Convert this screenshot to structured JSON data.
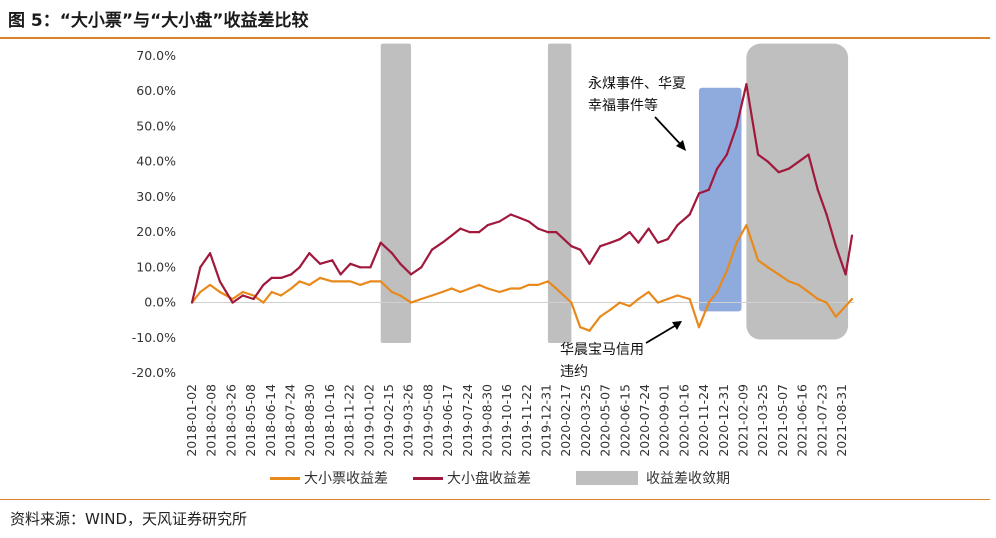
{
  "header": {
    "title": "图 5：“大小票”与“大小盘”收益差比较"
  },
  "footer": {
    "source": "资料来源：WIND，天风证券研究所"
  },
  "chart_data": {
    "type": "line",
    "title": "图 5：“大小票”与“大小盘”收益差比较",
    "xlabel": "",
    "ylabel": "",
    "ylim": [
      -0.2,
      0.7
    ],
    "y_ticks": [
      "70.0%",
      "60.0%",
      "50.0%",
      "40.0%",
      "30.0%",
      "20.0%",
      "10.0%",
      "0.0%",
      "-10.0%",
      "-20.0%"
    ],
    "y_tick_values": [
      0.7,
      0.6,
      0.5,
      0.4,
      0.3,
      0.2,
      0.1,
      0.0,
      -0.1,
      -0.2
    ],
    "x_ticks": [
      "2018-01-02",
      "2018-02-08",
      "2018-03-26",
      "2018-05-08",
      "2018-06-14",
      "2018-07-24",
      "2018-08-30",
      "2018-10-16",
      "2018-11-22",
      "2019-01-02",
      "2019-02-15",
      "2019-03-26",
      "2019-05-08",
      "2019-06-17",
      "2019-07-24",
      "2019-08-30",
      "2019-10-16",
      "2019-11-22",
      "2019-12-31",
      "2020-02-17",
      "2020-03-25",
      "2020-05-07",
      "2020-06-15",
      "2020-07-24",
      "2020-09-01",
      "2020-10-16",
      "2020-11-24",
      "2020-12-31",
      "2021-02-09",
      "2021-03-25",
      "2021-05-07",
      "2021-06-16",
      "2021-07-23",
      "2021-08-31"
    ],
    "legend_position": "bottom",
    "grid": false,
    "series": [
      {
        "name": "大小票收益差",
        "color": "#e8891c",
        "x": [
          "2018-01-02",
          "2018-01-19",
          "2018-02-08",
          "2018-02-28",
          "2018-03-26",
          "2018-04-16",
          "2018-05-08",
          "2018-05-28",
          "2018-06-14",
          "2018-07-03",
          "2018-07-24",
          "2018-08-10",
          "2018-08-30",
          "2018-09-21",
          "2018-10-16",
          "2018-11-02",
          "2018-11-22",
          "2018-12-12",
          "2019-01-02",
          "2019-01-23",
          "2019-02-15",
          "2019-03-04",
          "2019-03-26",
          "2019-04-16",
          "2019-05-08",
          "2019-05-29",
          "2019-06-17",
          "2019-07-05",
          "2019-07-24",
          "2019-08-12",
          "2019-08-30",
          "2019-09-23",
          "2019-10-16",
          "2019-11-04",
          "2019-11-22",
          "2019-12-11",
          "2019-12-31",
          "2020-01-17",
          "2020-02-17",
          "2020-03-06",
          "2020-03-25",
          "2020-04-16",
          "2020-05-07",
          "2020-05-26",
          "2020-06-15",
          "2020-07-03",
          "2020-07-24",
          "2020-08-12",
          "2020-09-01",
          "2020-09-21",
          "2020-10-16",
          "2020-11-04",
          "2020-11-24",
          "2020-12-11",
          "2020-12-31",
          "2021-01-20",
          "2021-02-09",
          "2021-03-05",
          "2021-03-25",
          "2021-04-16",
          "2021-05-07",
          "2021-05-27",
          "2021-06-16",
          "2021-07-05",
          "2021-07-23",
          "2021-08-11",
          "2021-08-31",
          "2021-09-13"
        ],
        "values": [
          0.0,
          0.03,
          0.05,
          0.03,
          0.01,
          0.03,
          0.02,
          0.0,
          0.03,
          0.02,
          0.04,
          0.06,
          0.05,
          0.07,
          0.06,
          0.06,
          0.06,
          0.05,
          0.06,
          0.06,
          0.03,
          0.02,
          0.0,
          0.01,
          0.02,
          0.03,
          0.04,
          0.03,
          0.04,
          0.05,
          0.04,
          0.03,
          0.04,
          0.04,
          0.05,
          0.05,
          0.06,
          0.04,
          0.0,
          -0.07,
          -0.08,
          -0.04,
          -0.02,
          0.0,
          -0.01,
          0.01,
          0.03,
          0.0,
          0.01,
          0.02,
          0.01,
          -0.07,
          0.0,
          0.03,
          0.09,
          0.17,
          0.22,
          0.12,
          0.1,
          0.08,
          0.06,
          0.05,
          0.03,
          0.01,
          0.0,
          -0.04,
          -0.01,
          0.01
        ]
      },
      {
        "name": "大小盘收益差",
        "color": "#a0183c",
        "x": [
          "2018-01-02",
          "2018-01-19",
          "2018-02-08",
          "2018-02-28",
          "2018-03-26",
          "2018-04-16",
          "2018-05-08",
          "2018-05-28",
          "2018-06-14",
          "2018-07-03",
          "2018-07-24",
          "2018-08-10",
          "2018-08-30",
          "2018-09-21",
          "2018-10-16",
          "2018-11-02",
          "2018-11-22",
          "2018-12-12",
          "2019-01-02",
          "2019-01-23",
          "2019-02-15",
          "2019-03-04",
          "2019-03-26",
          "2019-04-16",
          "2019-05-08",
          "2019-05-29",
          "2019-06-17",
          "2019-07-05",
          "2019-07-24",
          "2019-08-12",
          "2019-08-30",
          "2019-09-23",
          "2019-10-16",
          "2019-11-04",
          "2019-11-22",
          "2019-12-11",
          "2019-12-31",
          "2020-01-17",
          "2020-02-17",
          "2020-03-06",
          "2020-03-25",
          "2020-04-16",
          "2020-05-07",
          "2020-05-26",
          "2020-06-15",
          "2020-07-03",
          "2020-07-24",
          "2020-08-12",
          "2020-09-01",
          "2020-09-21",
          "2020-10-16",
          "2020-11-04",
          "2020-11-24",
          "2020-12-11",
          "2020-12-31",
          "2021-01-20",
          "2021-02-09",
          "2021-03-05",
          "2021-03-25",
          "2021-04-16",
          "2021-05-07",
          "2021-05-27",
          "2021-06-16",
          "2021-07-05",
          "2021-07-23",
          "2021-08-11",
          "2021-08-31",
          "2021-09-13"
        ],
        "values": [
          0.0,
          0.1,
          0.14,
          0.06,
          0.0,
          0.02,
          0.01,
          0.05,
          0.07,
          0.07,
          0.08,
          0.1,
          0.14,
          0.11,
          0.12,
          0.08,
          0.11,
          0.1,
          0.1,
          0.17,
          0.14,
          0.11,
          0.08,
          0.1,
          0.15,
          0.17,
          0.19,
          0.21,
          0.2,
          0.2,
          0.22,
          0.23,
          0.25,
          0.24,
          0.23,
          0.21,
          0.2,
          0.2,
          0.16,
          0.15,
          0.11,
          0.16,
          0.17,
          0.18,
          0.2,
          0.17,
          0.21,
          0.17,
          0.18,
          0.22,
          0.25,
          0.31,
          0.32,
          0.38,
          0.42,
          0.5,
          0.62,
          0.42,
          0.4,
          0.37,
          0.38,
          0.4,
          0.42,
          0.32,
          0.25,
          0.16,
          0.08,
          0.19
        ]
      }
    ],
    "shaded_regions": {
      "name": "收益差收敛期",
      "color": "#bfbfbf",
      "regions": [
        {
          "start": "2019-01-23",
          "end": "2019-03-26",
          "y": [
            -0.115,
            0.735
          ]
        },
        {
          "start": "2019-12-31",
          "end": "2020-02-17",
          "y": [
            -0.115,
            0.735
          ]
        },
        {
          "start": "2021-02-09",
          "end": "2021-09-05",
          "y": [
            -0.105,
            0.735
          ]
        }
      ],
      "highlight": {
        "start": "2020-11-04",
        "end": "2021-01-30",
        "y": [
          -0.025,
          0.61
        ],
        "color": "#8faadc"
      }
    },
    "annotations": [
      {
        "id": "annotation-top",
        "line1": "永煤事件、华夏",
        "line2": "幸福事件等"
      },
      {
        "id": "annotation-bottom",
        "line1": "华晨宝马信用",
        "line2": "违约"
      }
    ]
  }
}
